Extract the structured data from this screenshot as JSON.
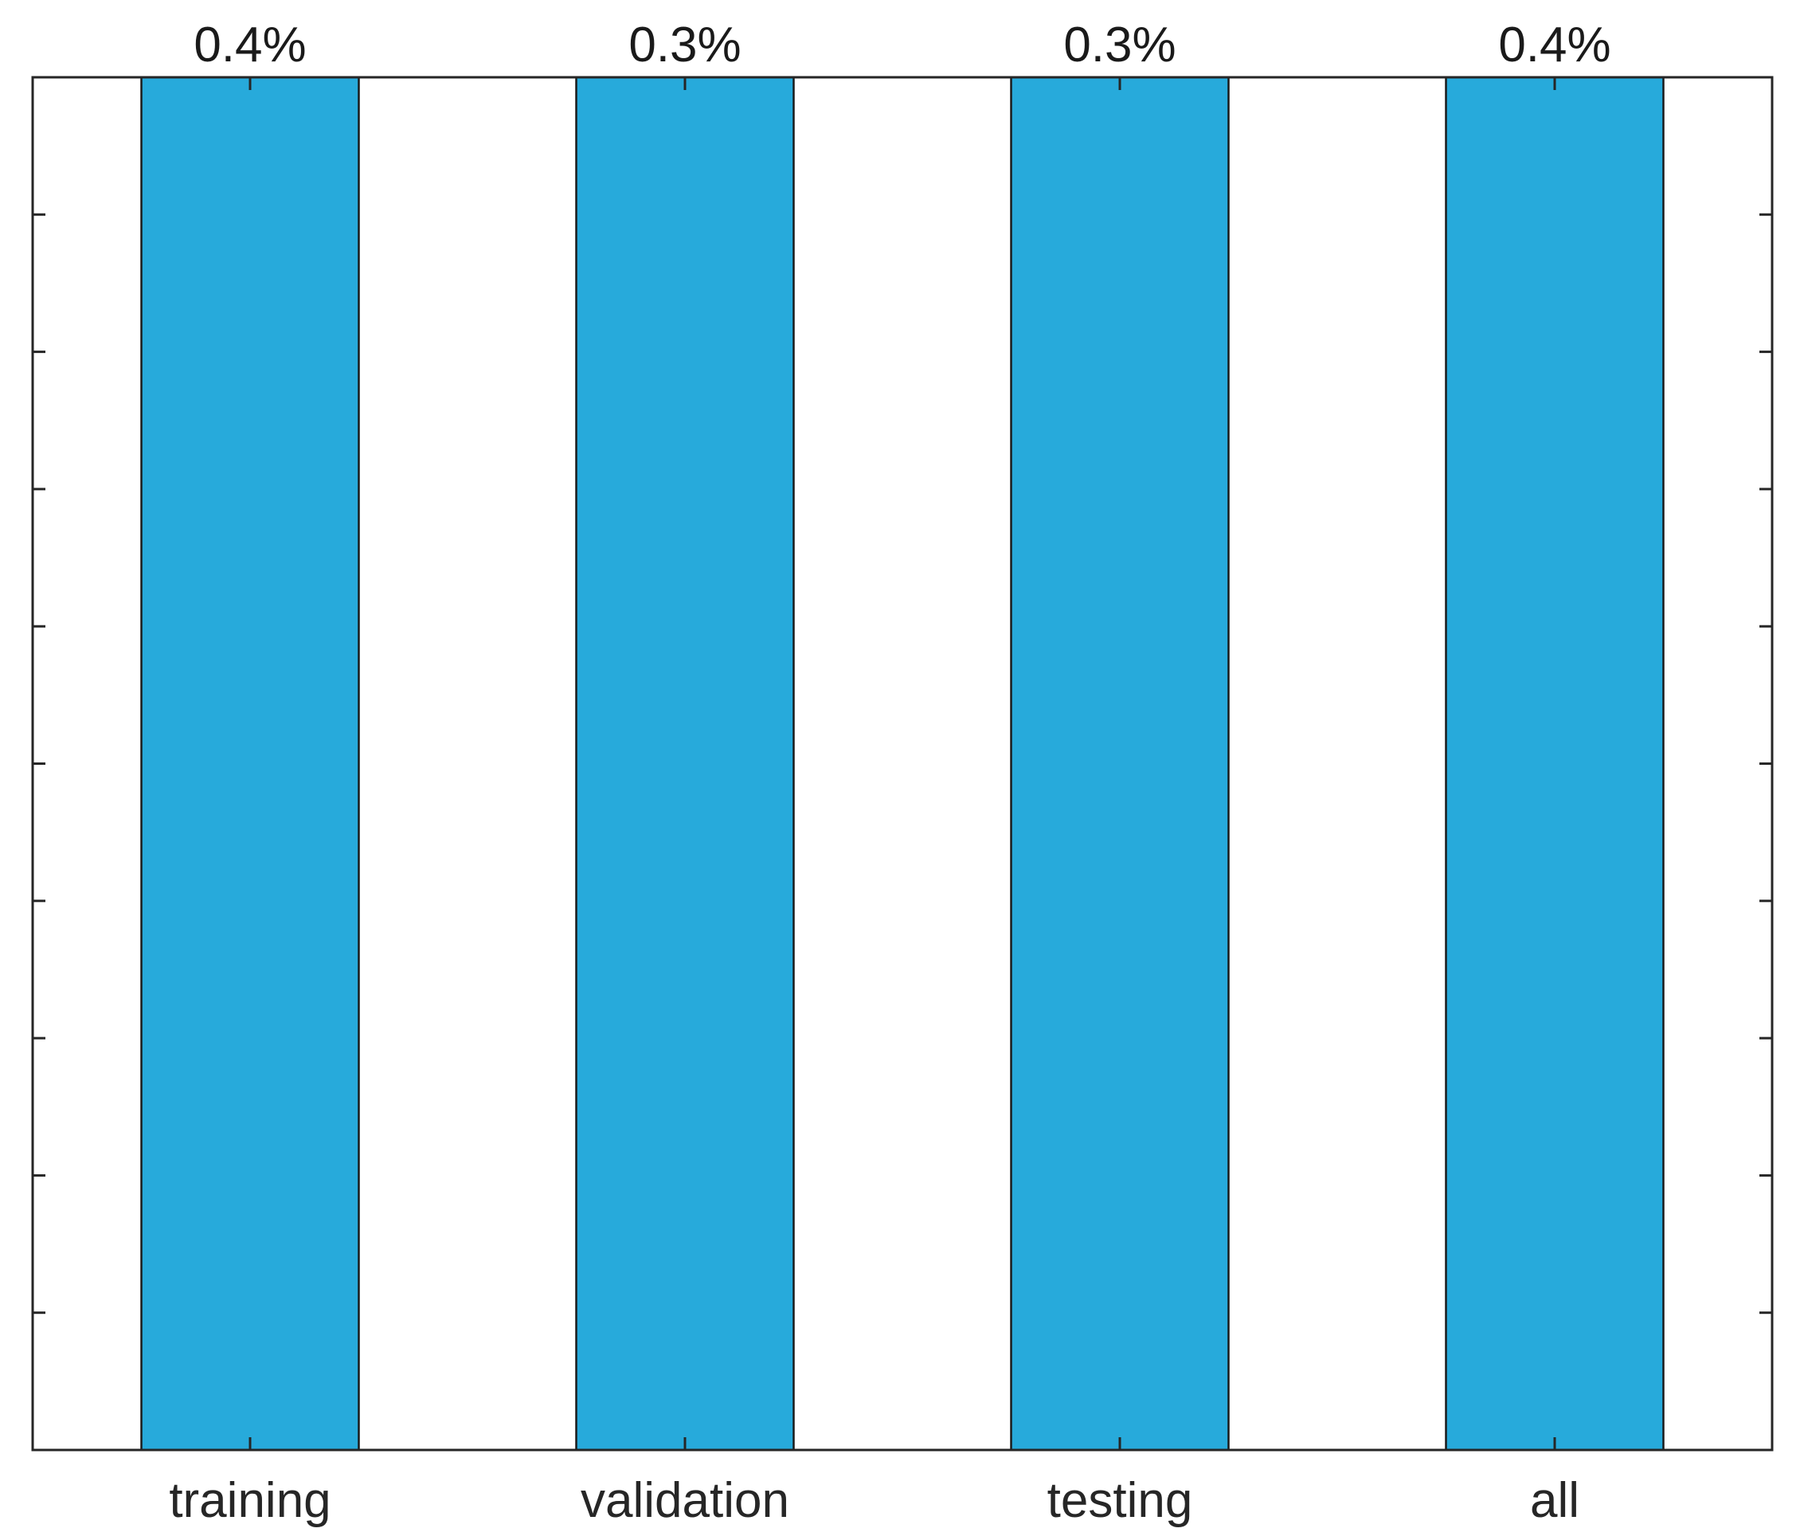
{
  "chart_data": {
    "type": "bar",
    "categories": [
      "training",
      "validation",
      "testing",
      "all"
    ],
    "values": [
      100,
      100,
      100,
      100
    ],
    "data_labels": [
      "0.4%",
      "0.3%",
      "0.3%",
      "0.4%"
    ],
    "title": "",
    "xlabel": "",
    "ylabel": "",
    "ylim": [
      0,
      100
    ],
    "ytick_count": 10,
    "y_tick_labels_visible": false,
    "grid": false,
    "legend": "none",
    "bar_color": "#27aadb",
    "edge_color": "#1a1a1a"
  }
}
